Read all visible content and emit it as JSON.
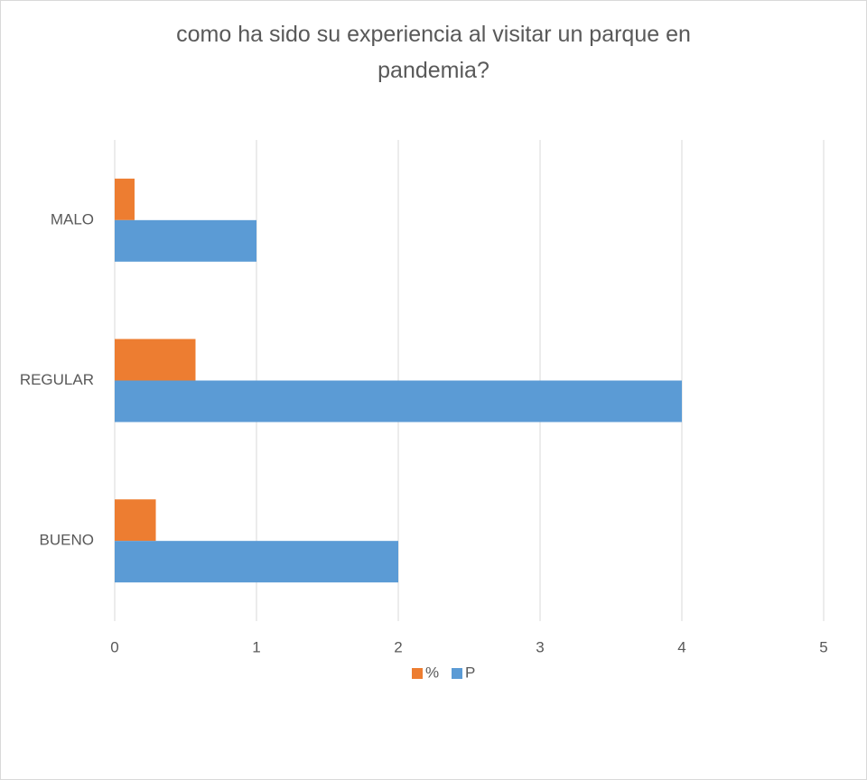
{
  "chart_data": {
    "type": "hbar",
    "title": "como ha sido su experiencia al visitar un parque en pandemia?",
    "categories": [
      "BUENO",
      "REGULAR",
      "MALO"
    ],
    "series": [
      {
        "name": "%",
        "color": "#ed7d31",
        "values": [
          0.29,
          0.57,
          0.14
        ]
      },
      {
        "name": "P",
        "color": "#5b9bd5",
        "values": [
          2,
          4,
          1
        ]
      }
    ],
    "xlim": [
      0,
      5
    ],
    "xticks": [
      0,
      1,
      2,
      3,
      4,
      5
    ],
    "grid": true,
    "legend": "bottom"
  }
}
